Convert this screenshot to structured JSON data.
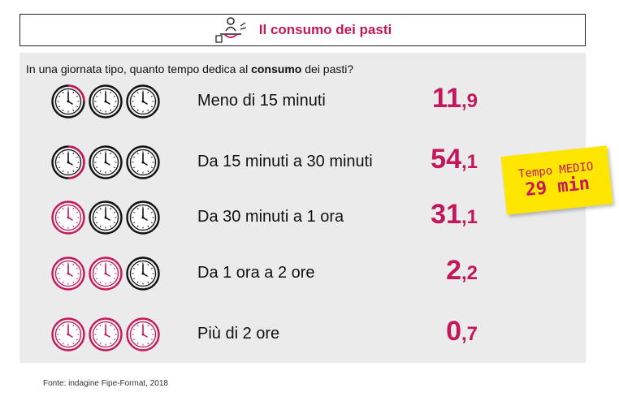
{
  "header": {
    "title": "Il consumo dei pasti",
    "icon": "diner-eating-icon"
  },
  "question": {
    "prefix": "In una giornata tipo, quanto tempo dedica al ",
    "emphasis": "consumo",
    "suffix": " dei pasti?"
  },
  "colors": {
    "accent": "#c2185b",
    "panel": "#ebebeb",
    "note": "#ffe600",
    "clock_neutral": "#111111"
  },
  "rows": [
    {
      "label": "Meno di 15 minuti",
      "value_int": "11",
      "value_dec": ",9",
      "highlighted_clocks": 0.25
    },
    {
      "label": "Da 15 minuti a 30 minuti",
      "value_int": "54",
      "value_dec": ",1",
      "highlighted_clocks": 0.5
    },
    {
      "label": "Da 30 minuti a 1 ora",
      "value_int": "31",
      "value_dec": ",1",
      "highlighted_clocks": 1
    },
    {
      "label": "Da 1 ora a 2 ore",
      "value_int": "2",
      "value_dec": ",2",
      "highlighted_clocks": 2
    },
    {
      "label": "Più di 2 ore",
      "value_int": "0",
      "value_dec": ",7",
      "highlighted_clocks": 3
    }
  ],
  "note": {
    "line1": "Tempo MEDIO",
    "line2": "29 min"
  },
  "source": "Fonte: indagine Fipe-Format, 2018"
}
